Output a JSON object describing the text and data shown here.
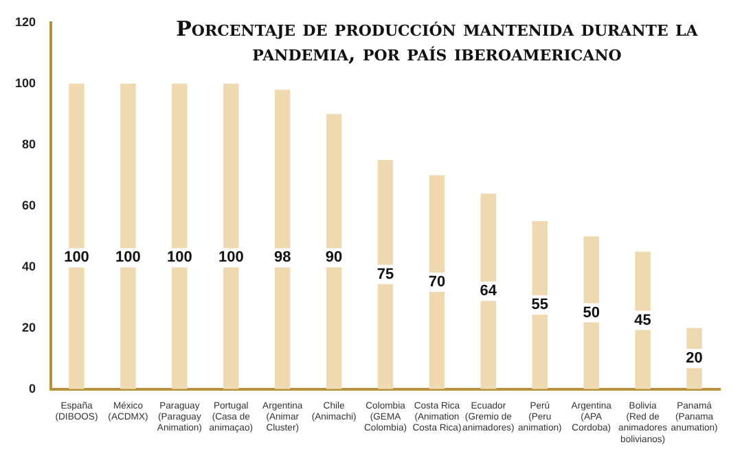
{
  "chart_data": {
    "type": "bar",
    "title": "Porcentaje de producción mantenida durante la pandemia, por país iberoamericano",
    "categories": [
      "España\n(DIBOOS)",
      "México\n(ACDMX)",
      "Paraguay\n(Paraguay\nAnimation)",
      "Portugal\n(Casa de\nanimaçao)",
      "Argentina\n(Animar\nCluster)",
      "Chile\n(Animachi)",
      "Colombia\n(GEMA\nColombia)",
      "Costa Rica\n(Animation\nCosta Rica)",
      "Ecuador\n(Gremio de\nanimadores)",
      "Perú\n(Peru\nanimation)",
      "Argentina\n(APA\nCordoba)",
      "Bolivia\n(Red de\nanimadores\nbolivianos)",
      "Panamá\n(Panama\nanumation)"
    ],
    "values": [
      100,
      100,
      100,
      100,
      98,
      90,
      75,
      70,
      64,
      55,
      50,
      45,
      20
    ],
    "color": "#efd9b0",
    "ylim": [
      0,
      120
    ],
    "yticks": [
      0,
      20,
      40,
      60,
      80,
      100,
      120
    ],
    "grid": false,
    "data_labels": true,
    "legend": false
  }
}
